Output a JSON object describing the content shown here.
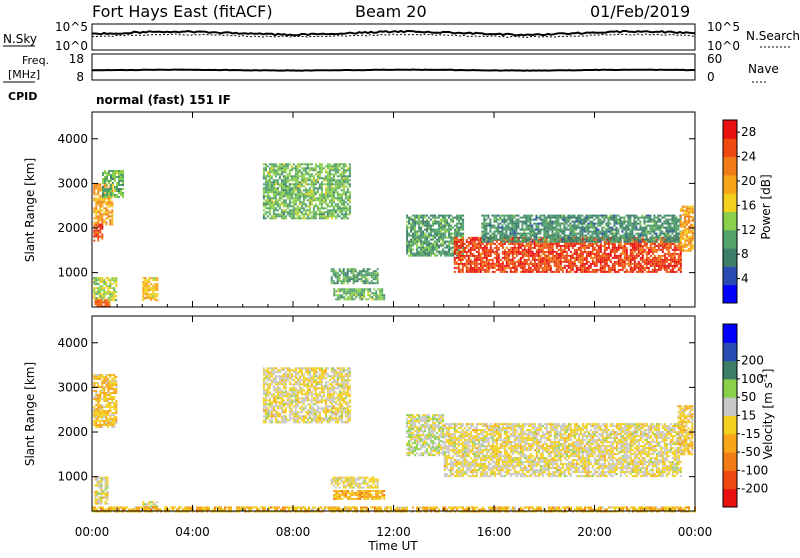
{
  "header": {
    "station": "Fort Hays East (fitACF)",
    "beam": "Beam 20",
    "date": "01/Feb/2019"
  },
  "noise_panel": {
    "left_label": "N.Sky",
    "right_label": "N.Search",
    "ticks_left": [
      "10^5",
      "10^0"
    ],
    "ticks_right": [
      "10^5",
      "10^0"
    ]
  },
  "freq_panel": {
    "left_label_top": "Freq.",
    "left_label_bottom": "[MHz]",
    "right_label": "Nave",
    "ticks_left": [
      "18",
      "8"
    ],
    "ticks_right": [
      "60",
      "0"
    ]
  },
  "cpid": {
    "label": "CPID",
    "text": "normal (fast) 151 IF"
  },
  "colors": {
    "power": [
      "#0000ff",
      "#2a4bb4",
      "#3d7e6a",
      "#53a36a",
      "#8bd04c",
      "#f2d020",
      "#f7a51a",
      "#f07b17",
      "#ee4a12",
      "#e81010"
    ],
    "velocity": [
      "#e81010",
      "#ee4a12",
      "#f07b17",
      "#f7a51a",
      "#f2d020",
      "#c8c8c8",
      "#8bd04c",
      "#3d7e6a",
      "#2a4bb4",
      "#0000ff"
    ]
  },
  "chart_data": [
    {
      "type": "heatmap",
      "name": "power",
      "xlabel": "Time UT",
      "ylabel": "Slant Range [km]",
      "xlim": [
        0,
        24
      ],
      "ylim": [
        230,
        4600
      ],
      "x_ticks": [
        0,
        4,
        8,
        12,
        16,
        20,
        24
      ],
      "x_tick_labels": [
        "00:00",
        "04:00",
        "08:00",
        "12:00",
        "16:00",
        "20:00",
        "00:00"
      ],
      "y_ticks": [
        1000,
        2000,
        3000,
        4000
      ],
      "y_tick_labels": [
        "1000",
        "2000",
        "3000",
        "4000"
      ],
      "colorbar": {
        "label": "Power [dB]",
        "range": [
          0,
          30
        ],
        "tick_values": [
          4,
          8,
          12,
          16,
          20,
          24,
          28
        ],
        "tick_labels": [
          "4",
          "8",
          "12",
          "16",
          "20",
          "24",
          "28"
        ]
      },
      "regions": [
        {
          "t0": 0.05,
          "t1": 0.8,
          "r0": 2100,
          "r1": 3000,
          "value": 20
        },
        {
          "t0": 0.05,
          "t1": 0.4,
          "r0": 1700,
          "r1": 2100,
          "value": 26
        },
        {
          "t0": 0.05,
          "t1": 1.0,
          "r0": 400,
          "r1": 900,
          "value": 14
        },
        {
          "t0": 0.1,
          "t1": 0.7,
          "r0": 230,
          "r1": 400,
          "value": 24
        },
        {
          "t0": 0.4,
          "t1": 1.2,
          "r0": 2700,
          "r1": 3300,
          "value": 12
        },
        {
          "t0": 2.0,
          "t1": 2.6,
          "r0": 400,
          "r1": 900,
          "value": 18
        },
        {
          "t0": 6.8,
          "t1": 10.3,
          "r0": 2200,
          "r1": 3450,
          "value": 12
        },
        {
          "t0": 9.5,
          "t1": 11.4,
          "r0": 750,
          "r1": 1100,
          "value": 10
        },
        {
          "t0": 9.6,
          "t1": 11.6,
          "r0": 400,
          "r1": 650,
          "value": 12
        },
        {
          "t0": 12.5,
          "t1": 14.8,
          "r0": 1400,
          "r1": 2300,
          "value": 10
        },
        {
          "t0": 14.4,
          "t1": 23.4,
          "r0": 1000,
          "r1": 1800,
          "value": 26
        },
        {
          "t0": 15.5,
          "t1": 23.4,
          "r0": 1700,
          "r1": 2300,
          "value": 9
        },
        {
          "t0": 23.4,
          "t1": 23.9,
          "r0": 1500,
          "r1": 2500,
          "value": 20
        }
      ]
    },
    {
      "type": "heatmap",
      "name": "velocity",
      "xlabel": "Time UT",
      "ylabel": "Slant Range [km]",
      "xlim": [
        0,
        24
      ],
      "ylim": [
        230,
        4600
      ],
      "x_ticks": [
        0,
        4,
        8,
        12,
        16,
        20,
        24
      ],
      "x_tick_labels": [
        "00:00",
        "04:00",
        "08:00",
        "12:00",
        "16:00",
        "20:00",
        "00:00"
      ],
      "y_ticks": [
        1000,
        2000,
        3000,
        4000
      ],
      "y_tick_labels": [
        "1000",
        "2000",
        "3000",
        "4000"
      ],
      "colorbar": {
        "label": "Velocity [m s^-1]",
        "range": [
          -250,
          250
        ],
        "tick_values": [
          -200,
          -100,
          -50,
          -15,
          15,
          50,
          100,
          200
        ],
        "tick_labels": [
          "-200",
          "-100",
          "-50",
          "-15",
          "15",
          "50",
          "100",
          "200"
        ]
      },
      "regions": [
        {
          "t0": 0.05,
          "t1": 1.0,
          "r0": 2100,
          "r1": 3300,
          "value": -40
        },
        {
          "t0": 0.1,
          "t1": 0.6,
          "r0": 400,
          "r1": 1000,
          "value": 0
        },
        {
          "t0": 2.0,
          "t1": 2.6,
          "r0": 250,
          "r1": 450,
          "value": 30
        },
        {
          "t0": 6.8,
          "t1": 10.3,
          "r0": 2200,
          "r1": 3450,
          "value": 0
        },
        {
          "t0": 9.6,
          "t1": 11.6,
          "r0": 500,
          "r1": 700,
          "value": -60
        },
        {
          "t0": 9.5,
          "t1": 11.4,
          "r0": 750,
          "r1": 1000,
          "value": 0
        },
        {
          "t0": 12.5,
          "t1": 14.0,
          "r0": 1500,
          "r1": 2400,
          "value": 30
        },
        {
          "t0": 14.0,
          "t1": 23.4,
          "r0": 1000,
          "r1": 2200,
          "value": 0
        },
        {
          "t0": 23.3,
          "t1": 23.9,
          "r0": 1500,
          "r1": 2600,
          "value": -30
        },
        {
          "t0": 0.0,
          "t1": 24.0,
          "r0": 230,
          "r1": 330,
          "value": -50
        }
      ]
    }
  ]
}
